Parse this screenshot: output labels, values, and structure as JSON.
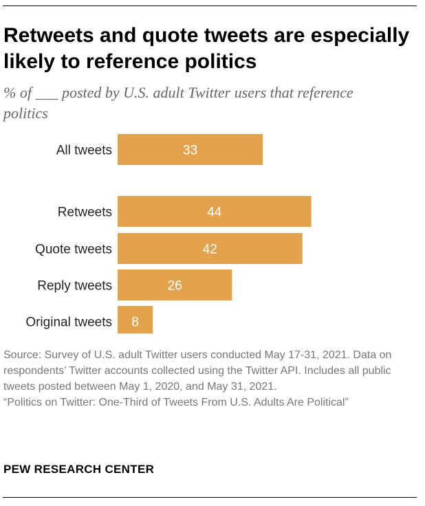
{
  "chart_data": {
    "type": "bar",
    "orientation": "horizontal",
    "title": "Retweets and quote tweets are especially likely to reference politics",
    "subtitle": "% of ___ posted by U.S. adult Twitter users that reference politics",
    "categories": [
      "All tweets",
      "Retweets",
      "Quote tweets",
      "Reply tweets",
      "Original tweets"
    ],
    "values": [
      33,
      44,
      42,
      26,
      8
    ],
    "value_labels": [
      "33",
      "44",
      "42",
      "26",
      "8"
    ],
    "bar_color": "#e3a24e",
    "grid": false,
    "legend": "none"
  },
  "footer": {
    "source": "Source: Survey of U.S. adult Twitter users conducted May 17-31, 2021. Data on respondents’ Twitter accounts collected using the Twitter API. Includes all public tweets posted between May 1, 2020, and May 31, 2021.",
    "report": "“Politics on Twitter: One-Third of Tweets From U.S. Adults Are Political”",
    "organization": "PEW RESEARCH CENTER"
  }
}
